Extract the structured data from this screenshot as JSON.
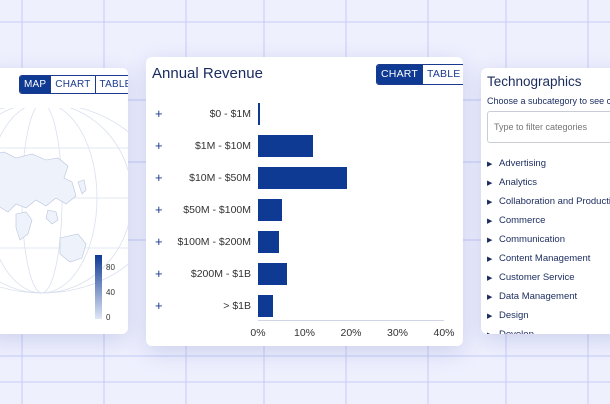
{
  "map_card": {
    "tabs": [
      "MAP",
      "CHART",
      "TABLE"
    ],
    "active_tab": "MAP",
    "legend": [
      "80",
      "40",
      "0"
    ],
    "legend_colors": [
      "#0f3a93",
      "#dfe7f7"
    ]
  },
  "revenue_card": {
    "title": "Annual Revenue",
    "tabs": [
      "CHART",
      "TABLE"
    ],
    "active_tab": "CHART",
    "expand_symbol": "+"
  },
  "chart_data": {
    "type": "bar",
    "orientation": "horizontal",
    "categories": [
      "$0 - $1M",
      "$1M - $10M",
      "$10M - $50M",
      "$50M - $100M",
      "$100M - $200M",
      "$200M - $1B",
      "> $1B"
    ],
    "values": [
      0.3,
      11.8,
      19.1,
      5.1,
      4.6,
      6.3,
      3.2
    ],
    "xticks": [
      "0%",
      "10%",
      "20%",
      "30%",
      "40%"
    ],
    "xlim": [
      0,
      40
    ],
    "bar_color": "#0f3a93"
  },
  "tech_card": {
    "title": "Technographics",
    "subtitle": "Choose a subcategory to see c",
    "filter_placeholder": "Type to filter categories",
    "categories": [
      "Advertising",
      "Analytics",
      "Collaboration and Productivi",
      "Commerce",
      "Communication",
      "Content Management",
      "Customer Service",
      "Data Management",
      "Design",
      "Develop..."
    ]
  }
}
